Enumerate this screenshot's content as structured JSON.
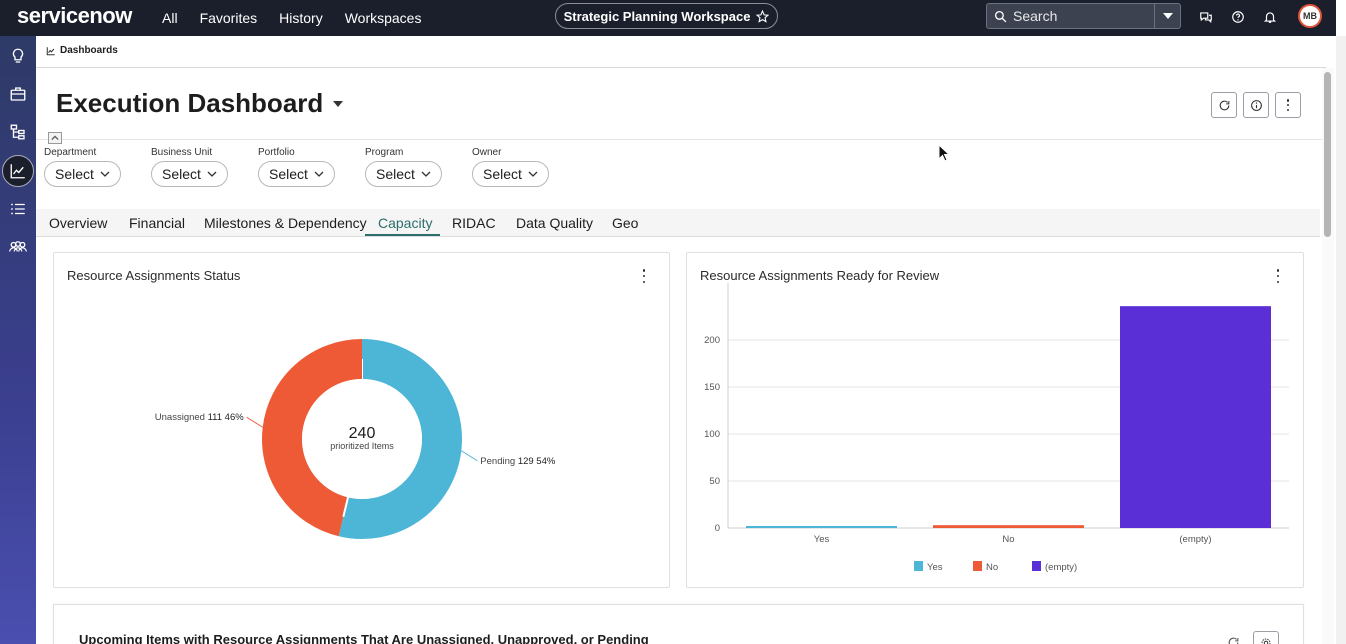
{
  "topbar": {
    "logo": "servicenow",
    "nav": [
      "All",
      "Favorites",
      "History",
      "Workspaces"
    ],
    "workspace": "Strategic Planning Workspace",
    "search_placeholder": "Search",
    "avatar_initials": "MB"
  },
  "breadcrumb": "Dashboards",
  "dashboard": {
    "title": "Execution Dashboard"
  },
  "filters": [
    {
      "label": "Department",
      "value": "Select"
    },
    {
      "label": "Business Unit",
      "value": "Select"
    },
    {
      "label": "Portfolio",
      "value": "Select"
    },
    {
      "label": "Program",
      "value": "Select"
    },
    {
      "label": "Owner",
      "value": "Select"
    }
  ],
  "tabs": [
    "Overview",
    "Financial",
    "Milestones & Dependency",
    "Capacity",
    "RIDAC",
    "Data Quality",
    "Geo"
  ],
  "active_tab": "Capacity",
  "widgets": {
    "donut": {
      "title": "Resource Assignments Status"
    },
    "bar": {
      "title": "Resource Assignments Ready for Review"
    },
    "bottom": {
      "title": "Upcoming Items with Resource Assignments That Are Unassigned, Unapproved, or Pending"
    }
  },
  "colors": {
    "accent": "#2b6e6c",
    "pending": "#4db6d6",
    "unassigned": "#ee5a36",
    "empty": "#5b2fd6"
  },
  "chart_data": [
    {
      "type": "pie",
      "title": "Resource Assignments Status",
      "total": "240",
      "total_label": "prioritized Items",
      "slices": [
        {
          "label": "Pending",
          "value": 129,
          "percent": "54%"
        },
        {
          "label": "Unassigned",
          "value": 111,
          "percent": "46%"
        }
      ]
    },
    {
      "type": "bar",
      "title": "Resource Assignments Ready for Review",
      "categories": [
        "Yes",
        "No",
        "(empty)"
      ],
      "values": [
        1,
        3,
        236
      ],
      "yticks": [
        "0",
        "50",
        "100",
        "150",
        "200"
      ],
      "ylim": [
        0,
        250
      ],
      "legend": [
        "Yes",
        "No",
        "(empty)"
      ],
      "legend_position": "bottom"
    }
  ]
}
